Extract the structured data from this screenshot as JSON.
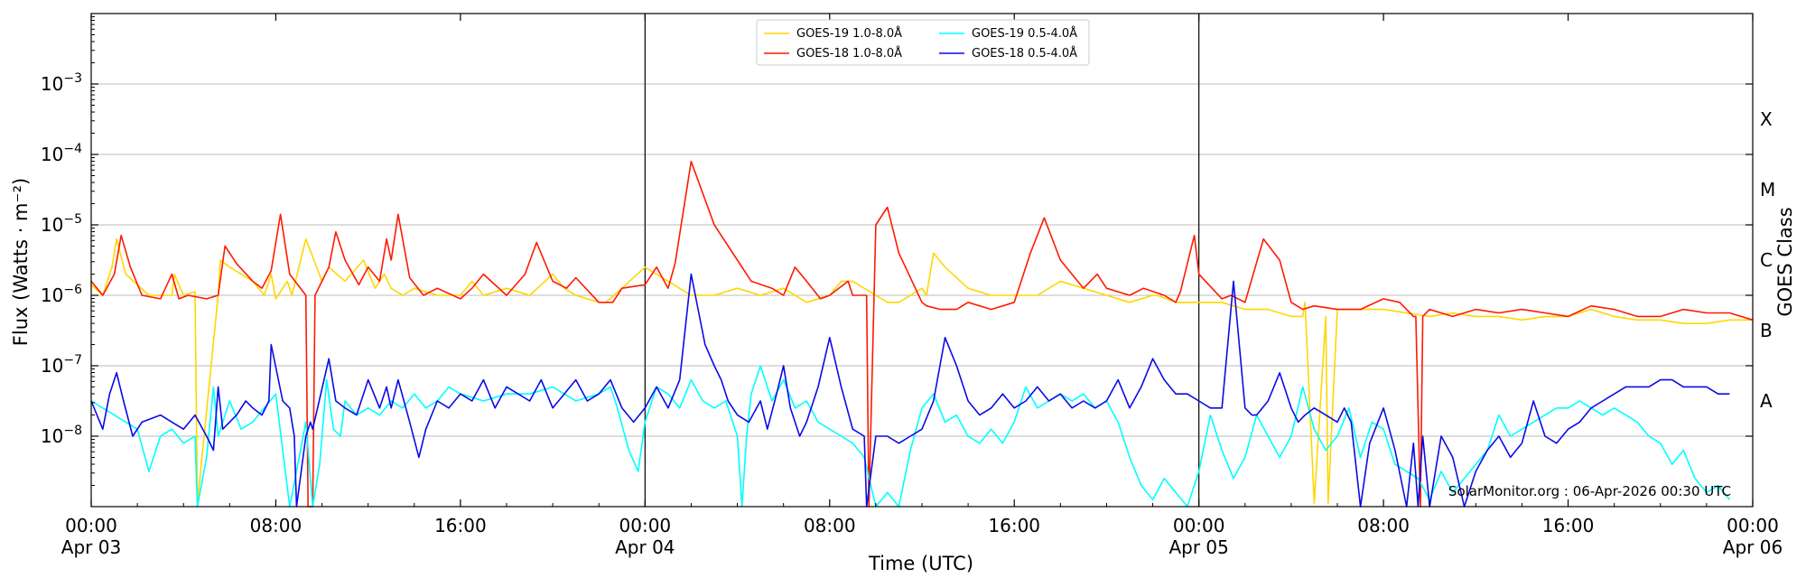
{
  "chart_data": {
    "type": "line",
    "ylabel": "Flux (Watts · m⁻²)",
    "xlabel": "Time (UTC)",
    "right_label": "GOES Class",
    "yscale": "log",
    "ylim_exp": [
      -9,
      -2
    ],
    "xlim_hours": [
      0,
      72
    ],
    "y_ticks": [
      {
        "exp": -8,
        "base": "10",
        "sup": "−8"
      },
      {
        "exp": -7,
        "base": "10",
        "sup": "−7"
      },
      {
        "exp": -6,
        "base": "10",
        "sup": "−6"
      },
      {
        "exp": -5,
        "base": "10",
        "sup": "−5"
      },
      {
        "exp": -4,
        "base": "10",
        "sup": "−4"
      },
      {
        "exp": -3,
        "base": "10",
        "sup": "−3"
      }
    ],
    "x_ticks": [
      {
        "hour": 0,
        "time": "00:00",
        "date": "Apr 03"
      },
      {
        "hour": 8,
        "time": "08:00",
        "date": ""
      },
      {
        "hour": 16,
        "time": "16:00",
        "date": ""
      },
      {
        "hour": 24,
        "time": "00:00",
        "date": "Apr 04"
      },
      {
        "hour": 32,
        "time": "08:00",
        "date": ""
      },
      {
        "hour": 40,
        "time": "16:00",
        "date": ""
      },
      {
        "hour": 48,
        "time": "00:00",
        "date": "Apr 05"
      },
      {
        "hour": 56,
        "time": "08:00",
        "date": ""
      },
      {
        "hour": 64,
        "time": "16:00",
        "date": ""
      },
      {
        "hour": 72,
        "time": "00:00",
        "date": "Apr 06"
      }
    ],
    "day_boundaries_hours": [
      24,
      48
    ],
    "goes_classes": [
      {
        "label": "A",
        "exp": -7.5
      },
      {
        "label": "B",
        "exp": -6.5
      },
      {
        "label": "C",
        "exp": -5.5
      },
      {
        "label": "M",
        "exp": -4.5
      },
      {
        "label": "X",
        "exp": -3.5
      }
    ],
    "legend": [
      {
        "label": "GOES-19 1.0-8.0Å",
        "color": "#FFD700"
      },
      {
        "label": "GOES-18 1.0-8.0Å",
        "color": "#FF1A00"
      },
      {
        "label": "GOES-19 0.5-4.0Å",
        "color": "#00FFFF"
      },
      {
        "label": "GOES-18 0.5-4.0Å",
        "color": "#0A0AE6"
      }
    ],
    "credit": "SolarMonitor.org : 06-Apr-2026 00:30 UTC",
    "series": [
      {
        "name": "GOES-19 1.0-8.0Å",
        "color": "#FFD700",
        "x": [
          0,
          0.5,
          0.9,
          1.1,
          1.5,
          2.5,
          3.5,
          3.6,
          4,
          4.5,
          4.6,
          5.5,
          5.6,
          6,
          7,
          7.5,
          7.8,
          8,
          8.5,
          8.7,
          9.3,
          10,
          10.3,
          11,
          11.8,
          12.3,
          12.7,
          13,
          13.5,
          14,
          15,
          16,
          16.5,
          17,
          18,
          19,
          20,
          20.5,
          21,
          22,
          22.3,
          23,
          24,
          25,
          26,
          27,
          28,
          29,
          30,
          31,
          32,
          32.5,
          33,
          34,
          34.5,
          35,
          36,
          36.2,
          36.5,
          37,
          38,
          39,
          40,
          41,
          42,
          43,
          44,
          45,
          46,
          46.2,
          47,
          48,
          49,
          50,
          51,
          52,
          52.5,
          52.6,
          53,
          53.5,
          53.6,
          54,
          55,
          55.5,
          56,
          57,
          58,
          59,
          60,
          61,
          62,
          63,
          64,
          65,
          66,
          67,
          68,
          69,
          70,
          71,
          72
        ],
        "logy": [
          -5.85,
          -6.0,
          -5.6,
          -5.2,
          -5.7,
          -6.0,
          -6.0,
          -5.7,
          -6.0,
          -5.95,
          -8.95,
          -6.0,
          -5.5,
          -5.6,
          -5.8,
          -6.0,
          -5.7,
          -6.05,
          -5.8,
          -6.0,
          -5.2,
          -5.8,
          -5.6,
          -5.8,
          -5.5,
          -5.9,
          -5.7,
          -5.9,
          -6.0,
          -5.9,
          -6.0,
          -6.0,
          -5.8,
          -6.0,
          -5.9,
          -6.0,
          -5.7,
          -5.9,
          -6.0,
          -6.1,
          -6.1,
          -5.9,
          -5.6,
          -5.8,
          -6.0,
          -6.0,
          -5.9,
          -6.0,
          -5.9,
          -6.1,
          -6.0,
          -5.8,
          -5.8,
          -6.0,
          -6.1,
          -6.1,
          -5.9,
          -6.0,
          -5.4,
          -5.6,
          -5.9,
          -6.0,
          -6.0,
          -6.0,
          -5.8,
          -5.9,
          -6.0,
          -6.1,
          -6.0,
          -6.0,
          -6.1,
          -6.1,
          -6.1,
          -6.2,
          -6.2,
          -6.3,
          -6.3,
          -6.1,
          -8.95,
          -6.3,
          -8.95,
          -6.2,
          -6.2,
          -6.2,
          -6.2,
          -6.25,
          -6.3,
          -6.25,
          -6.3,
          -6.3,
          -6.35,
          -6.3,
          -6.3,
          -6.2,
          -6.3,
          -6.35,
          -6.35,
          -6.4,
          -6.4,
          -6.35,
          -6.35
        ]
      },
      {
        "name": "GOES-18 1.0-8.0Å",
        "color": "#FF1A00",
        "x": [
          0,
          0.5,
          1,
          1.3,
          1.7,
          2.2,
          3,
          3.5,
          3.8,
          4.2,
          5,
          5.5,
          5.8,
          6.3,
          7,
          7.4,
          7.8,
          8.2,
          8.6,
          9.3,
          9.4,
          9.6,
          9.7,
          10.3,
          10.6,
          11,
          11.6,
          12,
          12.5,
          12.8,
          13,
          13.3,
          13.8,
          14.4,
          15,
          16,
          16.5,
          17,
          18,
          18.8,
          19.3,
          20,
          20.6,
          21,
          22,
          22.6,
          23,
          24,
          24.5,
          25,
          25.3,
          26,
          27,
          28,
          28.6,
          29.5,
          30,
          30.5,
          31,
          31.6,
          32,
          32.8,
          33,
          33.6,
          33.7,
          34,
          34.5,
          35,
          36,
          36.2,
          36.8,
          37.5,
          38,
          39,
          40,
          40.7,
          41.3,
          42,
          43,
          43.6,
          44,
          45,
          45.6,
          46.5,
          47,
          47.2,
          47.8,
          48,
          49,
          49.4,
          50,
          50.8,
          51.5,
          52,
          52.5,
          53,
          54,
          55,
          56,
          56.7,
          57.3,
          57.4,
          57.6,
          57.7,
          58,
          59,
          60,
          61,
          62,
          63,
          64,
          65,
          66,
          67,
          68,
          69,
          70,
          71,
          72
        ],
        "logy": [
          -5.8,
          -6.0,
          -5.7,
          -5.15,
          -5.6,
          -6.0,
          -6.05,
          -5.7,
          -6.05,
          -6.0,
          -6.05,
          -6.0,
          -5.3,
          -5.55,
          -5.8,
          -5.9,
          -5.65,
          -4.85,
          -5.7,
          -6.0,
          -9.0,
          -9.0,
          -6.0,
          -5.6,
          -5.1,
          -5.5,
          -5.85,
          -5.6,
          -5.8,
          -5.2,
          -5.5,
          -4.85,
          -5.75,
          -6.0,
          -5.9,
          -6.05,
          -5.9,
          -5.7,
          -6.0,
          -5.7,
          -5.25,
          -5.8,
          -5.9,
          -5.75,
          -6.1,
          -6.1,
          -5.9,
          -5.85,
          -5.6,
          -5.9,
          -5.55,
          -4.1,
          -5.0,
          -5.5,
          -5.8,
          -5.9,
          -6.0,
          -5.6,
          -5.8,
          -6.05,
          -6.0,
          -5.8,
          -6.0,
          -6.0,
          -9.0,
          -5.0,
          -4.75,
          -5.4,
          -6.1,
          -6.15,
          -6.2,
          -6.2,
          -6.1,
          -6.2,
          -6.1,
          -5.4,
          -4.9,
          -5.5,
          -5.9,
          -5.7,
          -5.9,
          -6.0,
          -5.9,
          -6.0,
          -6.1,
          -5.95,
          -5.15,
          -5.7,
          -6.05,
          -6.0,
          -6.1,
          -5.2,
          -5.5,
          -6.1,
          -6.2,
          -6.15,
          -6.2,
          -6.2,
          -6.05,
          -6.1,
          -6.3,
          -6.3,
          -9.0,
          -6.3,
          -6.2,
          -6.3,
          -6.2,
          -6.25,
          -6.2,
          -6.25,
          -6.3,
          -6.15,
          -6.2,
          -6.3,
          -6.3,
          -6.2,
          -6.25,
          -6.25,
          -6.35,
          -6.3
        ]
      },
      {
        "name": "GOES-19 0.5-4.0Å",
        "color": "#00FFFF",
        "x": [
          0,
          0.5,
          1,
          1.5,
          2,
          2.5,
          3,
          3.5,
          4,
          4.5,
          4.6,
          5,
          5.3,
          5.5,
          6,
          6.5,
          7,
          7.5,
          8,
          8.3,
          8.6,
          8.9,
          9.3,
          9.6,
          9.9,
          10.2,
          10.5,
          10.8,
          11,
          11.5,
          12,
          12.5,
          13,
          13.5,
          14,
          14.5,
          15,
          15.5,
          16,
          17,
          18,
          19,
          20,
          21,
          22,
          22.5,
          22.8,
          23.3,
          23.7,
          24,
          24.5,
          25,
          25.5,
          26,
          26.5,
          27,
          27.5,
          28,
          28.2,
          28.4,
          28.6,
          29,
          29.5,
          30,
          30.5,
          31,
          31.5,
          32,
          32.5,
          33,
          33.5,
          34,
          34.5,
          35,
          35.5,
          36,
          36.5,
          37,
          37.5,
          38,
          38.5,
          39,
          39.5,
          40,
          40.5,
          41,
          41.5,
          42,
          42.5,
          43,
          43.5,
          44,
          44.5,
          45,
          45.5,
          46,
          46.5,
          47,
          47.5,
          48,
          48.5,
          49,
          49.5,
          50,
          50.5,
          51,
          51.5,
          52,
          52.5,
          53,
          53.5,
          54,
          54.5,
          55,
          55.5,
          56,
          56.5,
          57,
          57.5,
          58,
          58.5,
          59,
          59.5,
          60,
          60.5,
          61,
          61.5,
          62,
          62.5,
          63,
          63.5,
          64,
          64.5,
          65,
          65.5,
          66,
          66.5,
          67,
          67.5,
          68,
          68.5,
          69,
          69.5,
          70,
          70.5,
          71,
          71.5,
          72
        ],
        "logy": [
          -7.5,
          -7.6,
          -7.7,
          -7.8,
          -7.9,
          -8.5,
          -8.0,
          -7.9,
          -8.1,
          -8.0,
          -9.0,
          -8.3,
          -7.3,
          -8.0,
          -7.5,
          -7.9,
          -7.8,
          -7.6,
          -7.4,
          -8.2,
          -9.0,
          -8.5,
          -7.8,
          -9.0,
          -8.4,
          -7.2,
          -7.9,
          -8.0,
          -7.5,
          -7.7,
          -7.6,
          -7.7,
          -7.5,
          -7.6,
          -7.4,
          -7.6,
          -7.5,
          -7.3,
          -7.4,
          -7.5,
          -7.4,
          -7.4,
          -7.3,
          -7.5,
          -7.4,
          -7.3,
          -7.6,
          -8.2,
          -8.5,
          -7.8,
          -7.3,
          -7.4,
          -7.6,
          -7.2,
          -7.5,
          -7.6,
          -7.5,
          -8.0,
          -9.0,
          -8.0,
          -7.4,
          -7.0,
          -7.5,
          -7.2,
          -7.6,
          -7.5,
          -7.8,
          -7.9,
          -8.0,
          -8.1,
          -8.3,
          -9.0,
          -8.8,
          -9.0,
          -8.2,
          -7.6,
          -7.4,
          -7.8,
          -7.7,
          -8.0,
          -8.1,
          -7.9,
          -8.1,
          -7.8,
          -7.3,
          -7.6,
          -7.5,
          -7.4,
          -7.5,
          -7.4,
          -7.6,
          -7.5,
          -7.8,
          -8.3,
          -8.7,
          -8.9,
          -8.6,
          -8.8,
          -9.0,
          -8.5,
          -7.7,
          -8.2,
          -8.6,
          -8.3,
          -7.7,
          -8.0,
          -8.3,
          -8.0,
          -7.3,
          -7.9,
          -8.2,
          -8.0,
          -7.6,
          -8.3,
          -7.8,
          -7.9,
          -8.4,
          -8.5,
          -8.6,
          -8.9,
          -8.5,
          -8.8,
          -8.6,
          -8.4,
          -8.2,
          -7.7,
          -8.0,
          -7.9,
          -7.8,
          -7.7,
          -7.6,
          -7.6,
          -7.5,
          -7.6,
          -7.7,
          -7.6,
          -7.7,
          -7.8,
          -8.0,
          -8.1,
          -8.4,
          -8.2,
          -8.6,
          -8.8,
          -8.7,
          -8.9
        ]
      },
      {
        "name": "GOES-18 0.5-4.0Å",
        "color": "#0A0AE6",
        "x": [
          0,
          0.5,
          0.8,
          1.1,
          1.4,
          1.8,
          2.2,
          3,
          3.5,
          4,
          4.5,
          5,
          5.3,
          5.5,
          5.7,
          6.3,
          6.7,
          7,
          7.4,
          7.7,
          7.8,
          8.3,
          8.6,
          8.8,
          8.9,
          9.3,
          9.5,
          9.6,
          10.3,
          10.6,
          11,
          11.5,
          12,
          12.5,
          12.8,
          13,
          13.3,
          13.8,
          14.2,
          14.5,
          15,
          15.5,
          16,
          16.5,
          17,
          17.5,
          18,
          18.5,
          19,
          19.5,
          20,
          20.5,
          21,
          21.5,
          22,
          22.5,
          23,
          23.5,
          24,
          24.5,
          25,
          25.5,
          26,
          26.3,
          26.6,
          27,
          27.3,
          27.6,
          28,
          28.5,
          29,
          29.3,
          29.7,
          30,
          30.3,
          30.7,
          31,
          31.5,
          32,
          32.5,
          33,
          33.5,
          33.6,
          34,
          34.5,
          35,
          35.5,
          36,
          36.5,
          37,
          37.5,
          38,
          38.5,
          39,
          39.5,
          40,
          40.5,
          41,
          41.5,
          42,
          42.5,
          43,
          43.5,
          44,
          44.5,
          45,
          45.5,
          46,
          46.5,
          47,
          47.2,
          47.5,
          48,
          48.5,
          49,
          49.5,
          50,
          50.3,
          50.5,
          51,
          51.5,
          52,
          52.3,
          52.6,
          53,
          53.5,
          54,
          54.3,
          54.6,
          55,
          55.4,
          56,
          56.5,
          57,
          57.3,
          57.5,
          57.7,
          58,
          58.5,
          59,
          59.5,
          60,
          60.5,
          61,
          61.5,
          62,
          62.5,
          63,
          63.5,
          64,
          64.5,
          65,
          65.5,
          66,
          66.5,
          67,
          67.5,
          68,
          68.5,
          69,
          69.5,
          70,
          70.5,
          71,
          71.5,
          72
        ],
        "logy": [
          -7.5,
          -7.9,
          -7.4,
          -7.1,
          -7.5,
          -8.0,
          -7.8,
          -7.7,
          -7.8,
          -7.9,
          -7.7,
          -8.0,
          -8.2,
          -7.3,
          -7.9,
          -7.7,
          -7.5,
          -7.6,
          -7.7,
          -7.5,
          -6.7,
          -7.5,
          -7.6,
          -8.0,
          -9.0,
          -8.0,
          -7.8,
          -7.9,
          -6.9,
          -7.5,
          -7.6,
          -7.7,
          -7.2,
          -7.6,
          -7.3,
          -7.6,
          -7.2,
          -7.8,
          -8.3,
          -7.9,
          -7.5,
          -7.6,
          -7.4,
          -7.5,
          -7.2,
          -7.6,
          -7.3,
          -7.4,
          -7.5,
          -7.2,
          -7.6,
          -7.4,
          -7.2,
          -7.5,
          -7.4,
          -7.2,
          -7.6,
          -7.8,
          -7.6,
          -7.3,
          -7.6,
          -7.2,
          -5.7,
          -6.2,
          -6.7,
          -7.0,
          -7.2,
          -7.5,
          -7.7,
          -7.8,
          -7.5,
          -7.9,
          -7.4,
          -7.0,
          -7.6,
          -8.0,
          -7.8,
          -7.3,
          -6.6,
          -7.3,
          -7.9,
          -8.0,
          -9.0,
          -8.0,
          -8.0,
          -8.1,
          -8.0,
          -7.9,
          -7.5,
          -6.6,
          -7.0,
          -7.5,
          -7.7,
          -7.6,
          -7.4,
          -7.6,
          -7.5,
          -7.3,
          -7.5,
          -7.4,
          -7.6,
          -7.5,
          -7.6,
          -7.5,
          -7.2,
          -7.6,
          -7.3,
          -6.9,
          -7.2,
          -7.4,
          -7.4,
          -7.4,
          -7.5,
          -7.6,
          -7.6,
          -5.8,
          -7.6,
          -7.7,
          -7.7,
          -7.5,
          -7.1,
          -7.6,
          -7.8,
          -7.7,
          -7.6,
          -7.7,
          -7.8,
          -7.6,
          -7.8,
          -9.0,
          -8.1,
          -7.6,
          -8.2,
          -9.0,
          -8.1,
          -9.0,
          -8.0,
          -9.0,
          -8.0,
          -8.3,
          -9.0,
          -8.5,
          -8.2,
          -8.0,
          -8.3,
          -8.1,
          -7.5,
          -8.0,
          -8.1,
          -7.9,
          -7.8,
          -7.6,
          -7.5,
          -7.4,
          -7.3,
          -7.3,
          -7.3,
          -7.2,
          -7.2,
          -7.3,
          -7.3,
          -7.3,
          -7.4,
          -7.4
        ]
      }
    ]
  }
}
